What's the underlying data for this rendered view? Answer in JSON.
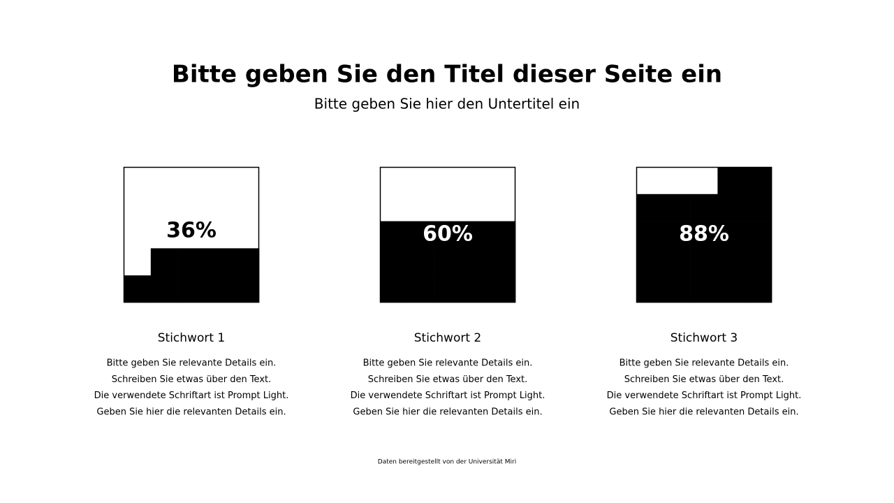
{
  "title": "Bitte geben Sie den Titel dieser Seite ein",
  "subtitle": "Bitte geben Sie hier den Untertitel ein",
  "chart_data": {
    "type": "waffle",
    "categories": [
      "Stichwort 1",
      "Stichwort 2",
      "Stichwort 3"
    ],
    "values": [
      36,
      60,
      88
    ],
    "value_labels": [
      "36%",
      "60%",
      "88%"
    ],
    "color": "#000000"
  },
  "details": [
    [
      "Bitte geben Sie relevante Details ein.",
      "Schreiben Sie etwas über den Text.",
      "Die verwendete Schriftart ist Prompt Light.",
      "Geben Sie hier die relevanten Details ein."
    ],
    [
      "Bitte geben Sie relevante Details ein.",
      "Schreiben Sie etwas über den Text.",
      "Die verwendete Schriftart ist Prompt Light.",
      "Geben Sie hier die relevanten Details ein."
    ],
    [
      "Bitte geben Sie relevante Details ein.",
      "Schreiben Sie etwas über den Text.",
      "Die verwendete Schriftart ist Prompt Light.",
      "Geben Sie hier die relevanten Details ein."
    ]
  ],
  "source": "Daten bereitgestellt von der Universität Miri"
}
